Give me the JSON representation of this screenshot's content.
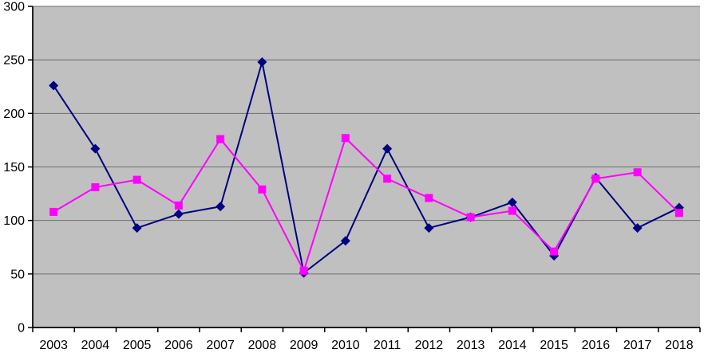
{
  "chart_data": {
    "type": "line",
    "title": "",
    "xlabel": "",
    "ylabel": "",
    "categories": [
      "2003",
      "2004",
      "2005",
      "2006",
      "2007",
      "2008",
      "2009",
      "2010",
      "2011",
      "2012",
      "2013",
      "2014",
      "2015",
      "2016",
      "2017",
      "2018"
    ],
    "series": [
      {
        "name": "navy-diamond-series",
        "color": "#000080",
        "marker": "diamond",
        "values": [
          226,
          167,
          93,
          106,
          113,
          248,
          51,
          81,
          167,
          93,
          103,
          117,
          67,
          140,
          93,
          112
        ]
      },
      {
        "name": "magenta-square-series",
        "color": "#FF00FF",
        "marker": "square",
        "values": [
          108,
          131,
          138,
          114,
          176,
          129,
          53,
          177,
          139,
          121,
          103,
          109,
          71,
          139,
          145,
          107
        ]
      }
    ],
    "ylim": [
      0,
      300
    ],
    "yticks": [
      0,
      50,
      100,
      150,
      200,
      250,
      300
    ],
    "grid": true,
    "legend_position": "none",
    "plot_bg_color": "#C0C0C0",
    "gridline_color": "#6E6E6E",
    "axis_color": "#000000",
    "page_bg_color": "#FFFFFF",
    "label_color": "#000000"
  }
}
